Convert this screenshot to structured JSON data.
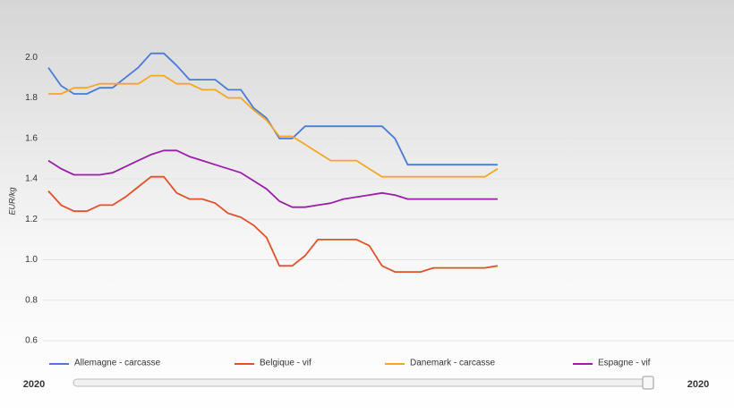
{
  "chart_data": {
    "type": "line",
    "y_label": "EUR/kg",
    "categories": [
      null,
      null,
      null,
      null,
      null,
      null,
      null,
      null,
      null,
      null,
      null,
      null,
      null,
      null,
      null,
      null,
      null,
      null,
      null,
      null,
      null,
      null,
      null,
      null,
      null,
      null,
      null,
      null,
      null,
      null,
      null,
      null,
      null,
      null,
      null,
      null
    ],
    "series": [
      {
        "name": "Allemagne - carcasse",
        "color": "#4a7bd8",
        "values": [
          1.95,
          1.86,
          1.82,
          1.82,
          1.85,
          1.85,
          1.9,
          1.95,
          2.02,
          2.02,
          1.96,
          1.89,
          1.89,
          1.89,
          1.84,
          1.84,
          1.75,
          1.7,
          1.6,
          1.6,
          1.66,
          1.66,
          1.66,
          1.66,
          1.66,
          1.66,
          1.66,
          1.6,
          1.47,
          1.47,
          1.47,
          1.47,
          1.47,
          1.47,
          1.47,
          1.47
        ]
      },
      {
        "name": "Belgique - vif",
        "color": "#e0512a",
        "values": [
          1.34,
          1.27,
          1.24,
          1.24,
          1.27,
          1.27,
          1.31,
          1.36,
          1.41,
          1.41,
          1.33,
          1.3,
          1.3,
          1.28,
          1.23,
          1.21,
          1.17,
          1.11,
          0.97,
          0.97,
          1.02,
          1.1,
          1.1,
          1.1,
          1.1,
          1.07,
          0.97,
          0.94,
          0.94,
          0.94,
          0.96,
          0.96,
          0.96,
          0.96,
          0.96,
          0.97
        ]
      },
      {
        "name": "Danemark - carcasse",
        "color": "#f5a623",
        "values": [
          1.82,
          1.82,
          1.85,
          1.85,
          1.87,
          1.87,
          1.87,
          1.87,
          1.91,
          1.91,
          1.87,
          1.87,
          1.84,
          1.84,
          1.8,
          1.8,
          1.74,
          1.69,
          1.61,
          1.61,
          1.57,
          1.53,
          1.49,
          1.49,
          1.49,
          1.45,
          1.41,
          1.41,
          1.41,
          1.41,
          1.41,
          1.41,
          1.41,
          1.41,
          1.41,
          1.45
        ]
      },
      {
        "name": "Espagne - vif",
        "color": "#9b1fa8",
        "values": [
          1.49,
          1.45,
          1.42,
          1.42,
          1.42,
          1.43,
          1.46,
          1.49,
          1.52,
          1.54,
          1.54,
          1.51,
          1.49,
          1.47,
          1.45,
          1.43,
          1.39,
          1.35,
          1.29,
          1.26,
          1.26,
          1.27,
          1.28,
          1.3,
          1.31,
          1.32,
          1.33,
          1.32,
          1.3,
          1.3,
          1.3,
          1.3,
          1.3,
          1.3,
          1.3,
          1.3
        ]
      }
    ],
    "ylim": [
      0.6,
      2.2
    ],
    "yticks": [
      0.6,
      0.8,
      {
        "value": 1.0,
        "label": "1.0"
      },
      1.2,
      1.4,
      1.6,
      1.8,
      {
        "value": 2.0,
        "label": "2.0"
      }
    ],
    "grid": true,
    "slider": {
      "start_label": "2020",
      "end_label": "2020"
    }
  }
}
